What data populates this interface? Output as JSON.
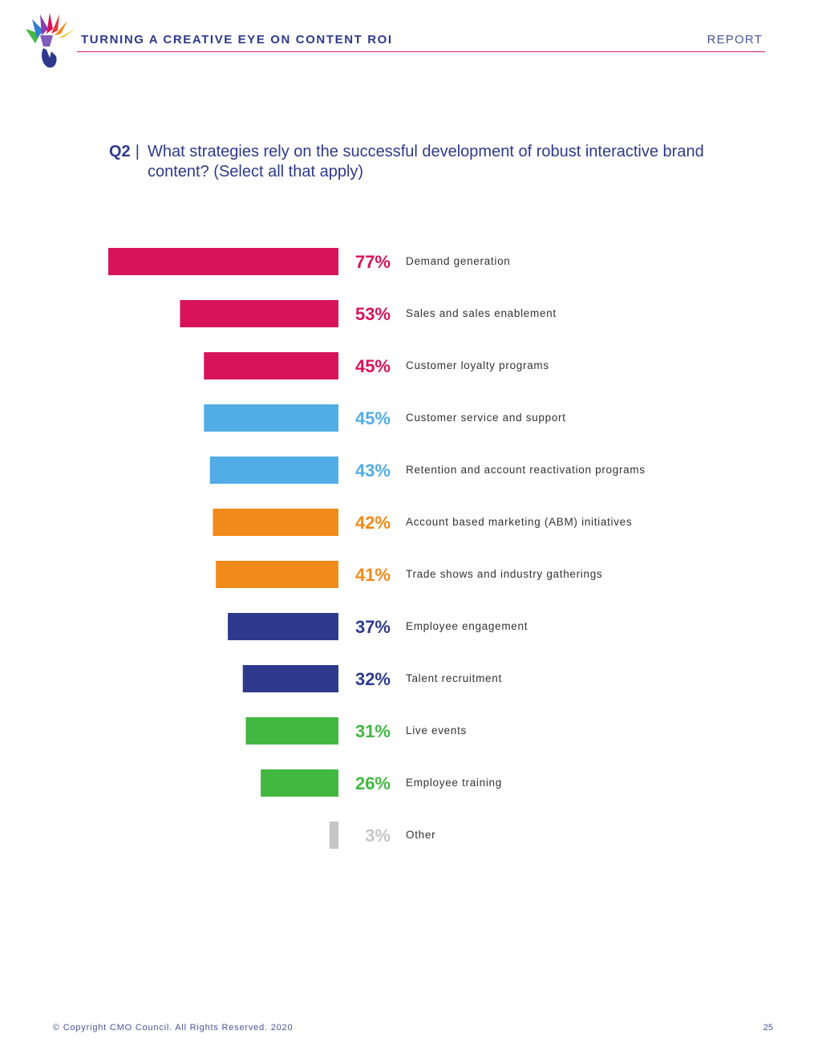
{
  "header": {
    "title": "TURNING A CREATIVE EYE ON CONTENT ROI",
    "right_label": "REPORT"
  },
  "question": {
    "number": "Q2",
    "separator": "|",
    "text": "What strategies rely on the successful development of robust interactive brand content? (Select all that apply)"
  },
  "chart_data": {
    "type": "bar",
    "orientation": "horizontal",
    "categories": [
      "Demand generation",
      "Sales and sales enablement",
      "Customer loyalty programs",
      "Customer service and support",
      "Retention and account reactivation programs",
      "Account based marketing (ABM) initiatives",
      "Trade shows and industry gatherings",
      "Employee engagement",
      "Talent recruitment",
      "Live events",
      "Employee training",
      "Other"
    ],
    "values": [
      77,
      53,
      45,
      45,
      43,
      42,
      41,
      37,
      32,
      31,
      26,
      3
    ],
    "value_labels": [
      "77%",
      "53%",
      "45%",
      "45%",
      "43%",
      "42%",
      "41%",
      "37%",
      "32%",
      "31%",
      "26%",
      "3%"
    ],
    "colors": [
      "#d81359",
      "#d81359",
      "#d81359",
      "#52ade6",
      "#52ade6",
      "#f28a1a",
      "#f28a1a",
      "#2d3a8c",
      "#2d3a8c",
      "#42b840",
      "#42b840",
      "#c6c6c6"
    ],
    "xlim": [
      0,
      77
    ],
    "unit": "%"
  },
  "footer": {
    "copyright": "© Copyright CMO Council. All Rights Reserved. 2020",
    "page_number": "25"
  }
}
